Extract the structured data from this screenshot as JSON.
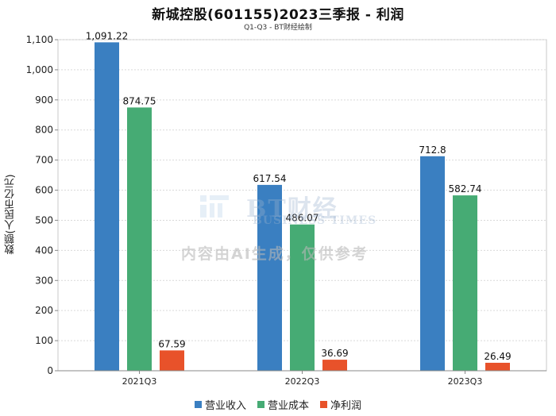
{
  "chart_data": {
    "type": "bar",
    "title": "新城控股(601155)2023三季报 - 利润",
    "subtitle": "Q1-Q3 - BT财经绘制",
    "ylabel": "数额(人民币亿元)",
    "xlabel": "",
    "ylim": [
      0,
      1100
    ],
    "yticks": [
      "0",
      "100",
      "200",
      "300",
      "400",
      "500",
      "600",
      "700",
      "800",
      "900",
      "1,000",
      "1,100"
    ],
    "categories": [
      "2021Q3",
      "2022Q3",
      "2023Q3"
    ],
    "series": [
      {
        "name": "营业收入",
        "color": "#3a7fc1",
        "values": [
          1091.22,
          617.54,
          712.8
        ],
        "labels": [
          "1,091.22",
          "617.54",
          "712.8"
        ]
      },
      {
        "name": "营业成本",
        "color": "#46ab74",
        "values": [
          874.75,
          486.07,
          582.74
        ],
        "labels": [
          "874.75",
          "486.07",
          "582.74"
        ]
      },
      {
        "name": "净利润",
        "color": "#e8522a",
        "values": [
          67.59,
          36.69,
          26.49
        ],
        "labels": [
          "67.59",
          "36.69",
          "26.49"
        ]
      }
    ],
    "grid": true,
    "legend": "bottom-center"
  },
  "watermark": {
    "brand": "BT财经",
    "brand_sub": "BUSINESS TIMES",
    "note": "内容由AI生成，仅供参考"
  }
}
